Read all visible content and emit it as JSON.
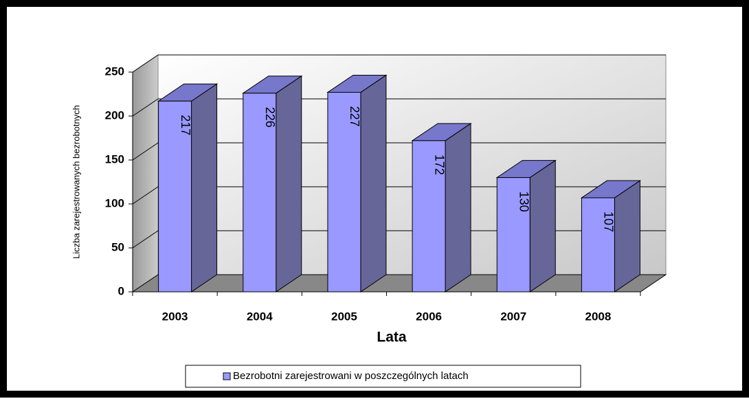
{
  "chart_data": {
    "type": "bar3d",
    "categories": [
      "2003",
      "2004",
      "2005",
      "2006",
      "2007",
      "2008"
    ],
    "series": [
      {
        "name": "Bezrobotni zarejestrowani w poszczególnych latach",
        "color": "#9999ff",
        "values": [
          217,
          226,
          227,
          172,
          130,
          107
        ]
      }
    ],
    "x_label": "Lata",
    "y_label": "Liczba zarejestrowanych bezrobotnych",
    "ylim": [
      0,
      250
    ],
    "yticks": [
      0,
      50,
      100,
      150,
      200,
      250
    ],
    "grid": true,
    "legend": "bottom"
  }
}
